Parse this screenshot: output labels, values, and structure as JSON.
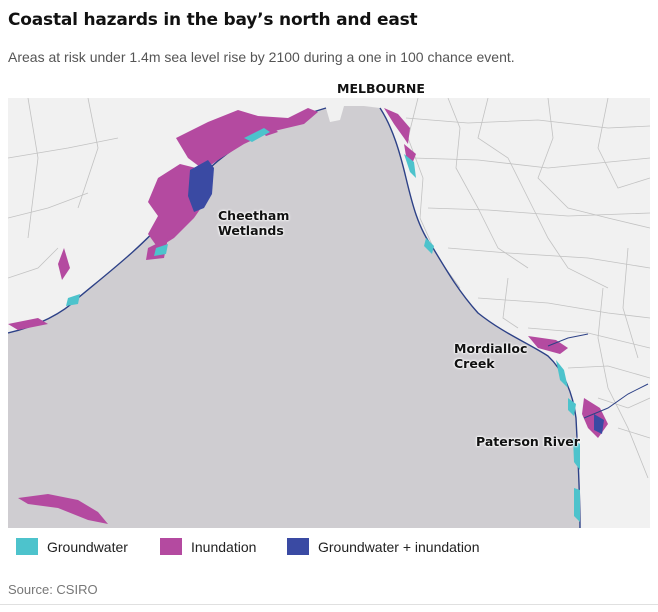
{
  "header": {
    "title": "Coastal hazards in the bay’s north and east",
    "subtitle": "Areas at risk under 1.4m sea level rise by 2100 during a one in 100 chance event."
  },
  "map": {
    "labels": {
      "city": "MELBOURNE",
      "wetlands": "Cheetham\nWetlands",
      "mordialloc": "Mordialloc\nCreek",
      "paterson": "Paterson River"
    },
    "colors": {
      "water": "#cfcdd1",
      "land": "#f1f1f1",
      "roads": "#c2c2c2",
      "coast": "#2d4187"
    }
  },
  "legend": {
    "items": [
      {
        "label": "Groundwater",
        "color": "#4dc3cc"
      },
      {
        "label": "Inundation",
        "color": "#b44aa0"
      },
      {
        "label": "Groundwater + inundation",
        "color": "#3a4aa3"
      }
    ]
  },
  "footer": {
    "source": "Source: CSIRO"
  }
}
